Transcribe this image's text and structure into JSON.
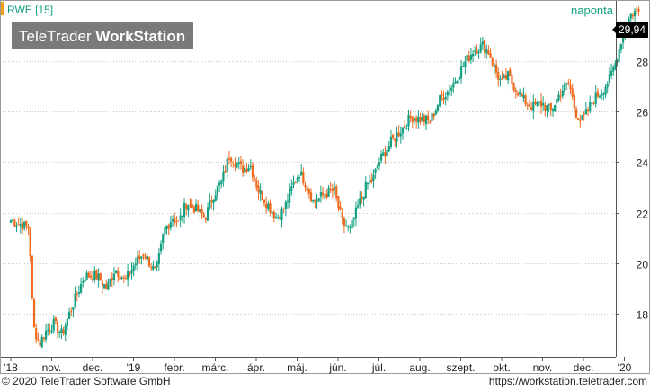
{
  "chart_data": {
    "type": "candlestick",
    "instrument_label": "RWE [15]",
    "watermark": {
      "light": "TeleTrader ",
      "bold": "WorkStation"
    },
    "period_label": "naponta",
    "last_price": "29,94",
    "y_ticks": [
      18,
      20,
      22,
      24,
      26,
      28
    ],
    "ylim": [
      16.3,
      30.4
    ],
    "x_labels": [
      "'18",
      "nov.",
      "dec.",
      "'19",
      "febr.",
      "márc.",
      "ápr.",
      "máj.",
      "jún.",
      "júl.",
      "aug.",
      "szept.",
      "okt.",
      "nov.",
      "dec.",
      "'20"
    ],
    "x_label_positions": [
      0,
      1,
      2,
      3,
      4,
      5,
      6,
      7,
      8,
      9,
      10,
      11,
      12,
      13,
      14,
      15
    ],
    "anchor_series": {
      "x": [
        0,
        0.45,
        0.55,
        0.7,
        0.85,
        1.05,
        1.25,
        1.5,
        1.8,
        2.1,
        2.35,
        2.55,
        2.8,
        3.0,
        3.25,
        3.55,
        3.75,
        3.95,
        4.1,
        4.3,
        4.55,
        4.75,
        4.95,
        5.15,
        5.35,
        5.5,
        5.65,
        5.85,
        6.05,
        6.25,
        6.5,
        6.7,
        6.85,
        7.05,
        7.2,
        7.4,
        7.65,
        7.9,
        8.1,
        8.3,
        8.5,
        8.7,
        8.85,
        9.0,
        9.15,
        9.3,
        9.55,
        9.8,
        10.0,
        10.25,
        10.5,
        10.75,
        11.05,
        11.3,
        11.55,
        11.7,
        11.85,
        12.0,
        12.15,
        12.35,
        12.55,
        12.75,
        13.0,
        13.2,
        13.45,
        13.65,
        13.8,
        13.95,
        14.1,
        14.25,
        14.45,
        14.65,
        14.8,
        14.95,
        15.05,
        15.15,
        15.25,
        15.35
      ],
      "close": [
        21.7,
        21.4,
        17.5,
        16.8,
        17.3,
        17.6,
        17.2,
        18.3,
        19.5,
        19.5,
        19.0,
        19.8,
        19.3,
        19.9,
        20.4,
        19.6,
        21.3,
        21.8,
        21.6,
        22.4,
        22.1,
        21.8,
        22.7,
        23.2,
        24.3,
        24.0,
        23.7,
        23.9,
        22.9,
        22.4,
        21.8,
        22.2,
        22.9,
        23.6,
        23.2,
        22.4,
        22.7,
        22.9,
        21.6,
        21.3,
        22.3,
        23.1,
        23.3,
        24.0,
        24.4,
        24.8,
        25.3,
        25.8,
        25.7,
        25.6,
        26.5,
        26.9,
        27.8,
        28.4,
        28.6,
        28.3,
        27.6,
        27.1,
        27.4,
        26.9,
        26.4,
        26.2,
        26.3,
        26.0,
        26.8,
        27.1,
        26.0,
        25.6,
        26.0,
        26.5,
        26.8,
        27.3,
        28.0,
        29.0,
        29.4,
        29.8,
        29.94,
        29.94
      ]
    }
  },
  "footer": {
    "copyright": "© 2020  TeleTrader Software GmbH",
    "url": "https://workstation.teletrader.com"
  },
  "colors": {
    "up": "#14a083",
    "down": "#f06a1e",
    "accent": "#f29d1a",
    "grid": "#c8c8c8",
    "axis_text": "#222222",
    "watermark_bg": "#737373"
  }
}
